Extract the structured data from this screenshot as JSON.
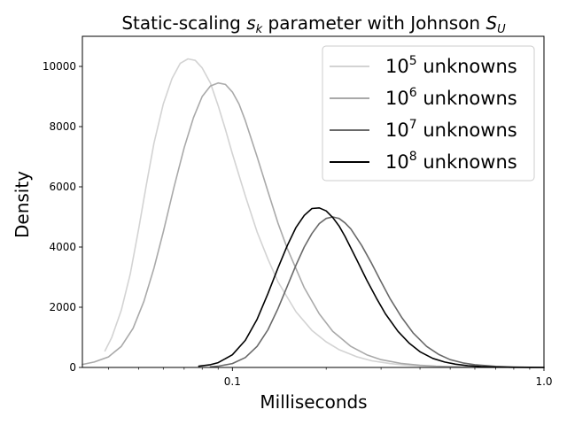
{
  "chart_data": {
    "type": "line",
    "title_text": "Static-scaling ",
    "title_var": "s",
    "title_var_sub": "k",
    "title_mid": " parameter with Johnson ",
    "title_var2": "S",
    "title_var2_sub": "U",
    "xlabel": "Milliseconds",
    "ylabel": "Density",
    "x_scale": "log",
    "xlim": [
      0.033,
      1.0
    ],
    "ylim": [
      0,
      11000
    ],
    "x_ticks": [
      {
        "value": 0.1,
        "label": "0.1"
      },
      {
        "value": 1.0,
        "label": "1.0"
      }
    ],
    "y_ticks": [
      {
        "value": 0,
        "label": "0"
      },
      {
        "value": 2000,
        "label": "2000"
      },
      {
        "value": 4000,
        "label": "4000"
      },
      {
        "value": 6000,
        "label": "6000"
      },
      {
        "value": 8000,
        "label": "8000"
      },
      {
        "value": 10000,
        "label": "10000"
      }
    ],
    "legend_position": "top-right",
    "series": [
      {
        "legend_base": "10",
        "legend_exp": "5",
        "legend_suffix": " unknowns",
        "color": "#d3d3d3",
        "x": [
          0.039,
          0.041,
          0.044,
          0.047,
          0.05,
          0.053,
          0.056,
          0.06,
          0.064,
          0.068,
          0.072,
          0.076,
          0.08,
          0.085,
          0.09,
          0.095,
          0.1,
          0.11,
          0.12,
          0.13,
          0.14,
          0.16,
          0.18,
          0.2,
          0.22,
          0.25,
          0.28,
          0.32,
          0.36,
          0.4,
          0.45,
          0.5,
          0.6,
          0.7,
          0.8,
          0.9,
          1.0
        ],
        "y": [
          550,
          1000,
          1900,
          3100,
          4600,
          6100,
          7450,
          8750,
          9600,
          10100,
          10250,
          10200,
          9950,
          9450,
          8700,
          7900,
          7100,
          5700,
          4500,
          3600,
          2850,
          1850,
          1230,
          850,
          590,
          360,
          220,
          130,
          80,
          50,
          30,
          18,
          8,
          4,
          2,
          1,
          0
        ]
      },
      {
        "legend_base": "10",
        "legend_exp": "6",
        "legend_suffix": " unknowns",
        "color": "#a9a9a9",
        "x": [
          0.033,
          0.036,
          0.04,
          0.044,
          0.048,
          0.052,
          0.056,
          0.06,
          0.065,
          0.07,
          0.075,
          0.08,
          0.085,
          0.09,
          0.095,
          0.1,
          0.105,
          0.11,
          0.12,
          0.13,
          0.14,
          0.15,
          0.17,
          0.19,
          0.21,
          0.24,
          0.27,
          0.3,
          0.35,
          0.4,
          0.45,
          0.5,
          0.6,
          0.7,
          0.8,
          0.9,
          1.0
        ],
        "y": [
          100,
          180,
          350,
          700,
          1300,
          2200,
          3300,
          4500,
          6000,
          7300,
          8300,
          9000,
          9350,
          9450,
          9400,
          9150,
          8750,
          8200,
          7000,
          5850,
          4800,
          3950,
          2650,
          1780,
          1200,
          700,
          420,
          260,
          130,
          70,
          40,
          25,
          10,
          5,
          2,
          1,
          0
        ]
      },
      {
        "legend_base": "10",
        "legend_exp": "7",
        "legend_suffix": " unknowns",
        "color": "#696969",
        "x": [
          0.085,
          0.09,
          0.1,
          0.11,
          0.12,
          0.13,
          0.14,
          0.15,
          0.16,
          0.17,
          0.18,
          0.19,
          0.2,
          0.21,
          0.22,
          0.23,
          0.24,
          0.26,
          0.28,
          0.3,
          0.32,
          0.35,
          0.38,
          0.42,
          0.46,
          0.5,
          0.55,
          0.6,
          0.7,
          0.8,
          0.9,
          1.0
        ],
        "y": [
          20,
          40,
          130,
          330,
          700,
          1250,
          1950,
          2700,
          3400,
          4000,
          4450,
          4780,
          4950,
          5000,
          4950,
          4800,
          4600,
          4050,
          3450,
          2850,
          2300,
          1650,
          1150,
          700,
          430,
          260,
          150,
          90,
          35,
          15,
          6,
          3
        ]
      },
      {
        "legend_base": "10",
        "legend_exp": "8",
        "legend_suffix": " unknowns",
        "color": "#000000",
        "x": [
          0.078,
          0.085,
          0.09,
          0.1,
          0.11,
          0.12,
          0.13,
          0.14,
          0.15,
          0.16,
          0.17,
          0.18,
          0.19,
          0.2,
          0.21,
          0.22,
          0.23,
          0.25,
          0.27,
          0.29,
          0.31,
          0.34,
          0.37,
          0.4,
          0.44,
          0.48,
          0.52,
          0.57,
          0.63,
          0.7,
          0.8,
          0.9,
          1.0
        ],
        "y": [
          40,
          90,
          160,
          420,
          900,
          1600,
          2450,
          3300,
          4050,
          4650,
          5050,
          5280,
          5300,
          5200,
          4980,
          4700,
          4350,
          3600,
          2900,
          2300,
          1780,
          1200,
          800,
          520,
          300,
          180,
          110,
          60,
          30,
          15,
          6,
          3,
          1
        ]
      }
    ]
  }
}
